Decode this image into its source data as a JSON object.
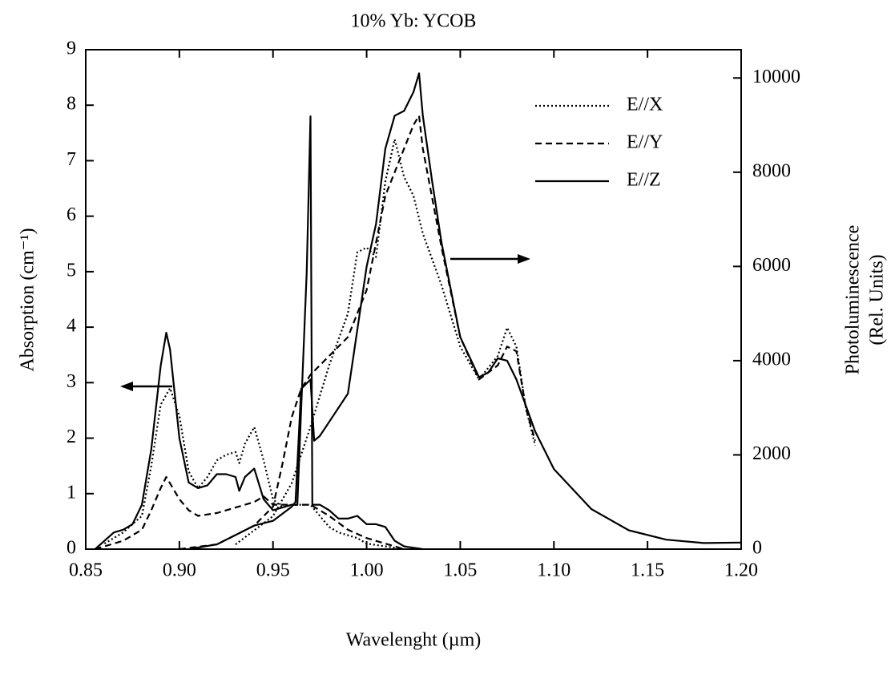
{
  "chart_data": {
    "type": "line",
    "title": "10% Yb: YCOB",
    "xlabel": "Wavelenght (µm)",
    "ylabel": "Absorption (cm⁻¹)",
    "y2label": [
      "Photoluminescence",
      "(Rel. Units)"
    ],
    "xlim": [
      0.85,
      1.2
    ],
    "xticks": [
      {
        "value": 0.85,
        "label": "0.85"
      },
      {
        "value": 0.9,
        "label": "0.90"
      },
      {
        "value": 0.95,
        "label": "0.95"
      },
      {
        "value": 1.0,
        "label": "1.00"
      },
      {
        "value": 1.05,
        "label": "1.05"
      },
      {
        "value": 1.1,
        "label": "1.10"
      },
      {
        "value": 1.15,
        "label": "1.15"
      },
      {
        "value": 1.2,
        "label": "1.20"
      }
    ],
    "ylim": [
      0,
      9
    ],
    "yticks": [
      0,
      1,
      2,
      3,
      4,
      5,
      6,
      7,
      8,
      9
    ],
    "y2lim": [
      0,
      10600
    ],
    "y2ticks": [
      0,
      2000,
      4000,
      6000,
      8000,
      10000
    ],
    "legend_position": "upper right",
    "styles": [
      {
        "name": "E//X",
        "dash": "2,3",
        "color": "#000000"
      },
      {
        "name": "E//Y",
        "dash": "8,5",
        "color": "#000000"
      },
      {
        "name": "E//Z",
        "dash": "none",
        "color": "#000000"
      }
    ],
    "series": [
      {
        "style": 0,
        "axis": "y",
        "x": [
          0.86,
          0.87,
          0.88,
          0.885,
          0.89,
          0.895,
          0.9,
          0.905,
          0.91,
          0.915,
          0.92,
          0.925,
          0.93,
          0.932,
          0.935,
          0.94,
          0.945,
          0.95,
          0.955,
          0.96,
          0.965,
          0.97,
          0.975,
          0.98,
          0.985,
          0.99,
          0.995,
          1.0,
          1.01,
          1.02
        ],
        "values": [
          0.1,
          0.3,
          0.6,
          1.5,
          2.6,
          2.9,
          2.4,
          1.4,
          1.1,
          1.3,
          1.6,
          1.7,
          1.75,
          1.55,
          1.9,
          2.2,
          1.6,
          0.9,
          0.75,
          0.8,
          0.8,
          0.8,
          0.6,
          0.4,
          0.3,
          0.25,
          0.2,
          0.1,
          0.05,
          0
        ]
      },
      {
        "style": 1,
        "axis": "y",
        "x": [
          0.855,
          0.86,
          0.87,
          0.88,
          0.885,
          0.89,
          0.893,
          0.9,
          0.905,
          0.91,
          0.92,
          0.93,
          0.94,
          0.945,
          0.95,
          0.96,
          0.97,
          0.98,
          0.99,
          1.0,
          1.01,
          1.02
        ],
        "values": [
          0,
          0.05,
          0.15,
          0.35,
          0.7,
          1.1,
          1.3,
          0.9,
          0.7,
          0.6,
          0.65,
          0.75,
          0.85,
          0.95,
          0.8,
          0.8,
          0.8,
          0.6,
          0.35,
          0.2,
          0.1,
          0
        ]
      },
      {
        "style": 2,
        "axis": "y",
        "x": [
          0.855,
          0.86,
          0.865,
          0.87,
          0.875,
          0.88,
          0.885,
          0.89,
          0.893,
          0.895,
          0.9,
          0.905,
          0.91,
          0.915,
          0.92,
          0.925,
          0.93,
          0.932,
          0.935,
          0.94,
          0.945,
          0.95,
          0.955,
          0.96,
          0.963,
          0.965,
          0.968,
          0.97,
          0.971,
          0.975,
          0.98,
          0.985,
          0.99,
          0.995,
          1.0,
          1.005,
          1.01,
          1.015,
          1.02,
          1.03
        ],
        "values": [
          0,
          0.15,
          0.3,
          0.35,
          0.45,
          0.8,
          1.8,
          3.3,
          3.9,
          3.6,
          2.0,
          1.2,
          1.1,
          1.15,
          1.35,
          1.35,
          1.3,
          1.05,
          1.3,
          1.45,
          0.9,
          0.7,
          0.75,
          0.8,
          0.8,
          2.5,
          5.0,
          7.8,
          0.8,
          0.8,
          0.7,
          0.55,
          0.55,
          0.6,
          0.45,
          0.45,
          0.4,
          0.15,
          0.05,
          0
        ]
      },
      {
        "style": 0,
        "axis": "y2",
        "x": [
          0.93,
          0.94,
          0.95,
          0.96,
          0.97,
          0.98,
          0.99,
          0.995,
          1.0,
          1.005,
          1.01,
          1.015,
          1.02,
          1.025,
          1.03,
          1.04,
          1.05,
          1.06,
          1.07,
          1.075,
          1.08,
          1.085,
          1.09
        ],
        "values": [
          100,
          400,
          700,
          1400,
          2600,
          3900,
          5000,
          6300,
          6400,
          6200,
          7800,
          8700,
          7900,
          7500,
          6700,
          5600,
          4300,
          3600,
          4100,
          4700,
          4300,
          3000,
          2200
        ]
      },
      {
        "style": 1,
        "axis": "y2",
        "x": [
          0.9,
          0.92,
          0.93,
          0.94,
          0.95,
          0.955,
          0.96,
          0.965,
          0.97,
          0.98,
          0.99,
          1.0,
          1.01,
          1.02,
          1.025,
          1.028,
          1.03,
          1.04,
          1.05,
          1.06,
          1.07,
          1.075,
          1.08,
          1.085,
          1.09
        ],
        "values": [
          0,
          100,
          300,
          500,
          900,
          1800,
          2800,
          3400,
          3700,
          4100,
          4500,
          5500,
          7500,
          8500,
          9000,
          9200,
          8500,
          6400,
          4500,
          3600,
          3900,
          4300,
          4200,
          3000,
          2300
        ]
      },
      {
        "style": 2,
        "axis": "y2",
        "x": [
          0.905,
          0.92,
          0.93,
          0.94,
          0.95,
          0.96,
          0.962,
          0.965,
          0.97,
          0.972,
          0.975,
          0.98,
          0.99,
          1.0,
          1.005,
          1.01,
          1.015,
          1.02,
          1.025,
          1.028,
          1.03,
          1.035,
          1.04,
          1.05,
          1.06,
          1.065,
          1.07,
          1.075,
          1.08,
          1.09,
          1.1,
          1.12,
          1.14,
          1.16,
          1.18,
          1.2
        ],
        "values": [
          0,
          100,
          300,
          500,
          600,
          900,
          1000,
          3400,
          3600,
          2300,
          2400,
          2700,
          3300,
          6000,
          6900,
          8500,
          9200,
          9300,
          9700,
          10100,
          9200,
          7800,
          6500,
          4500,
          3650,
          3750,
          4050,
          4000,
          3600,
          2500,
          1700,
          850,
          400,
          200,
          130,
          140
        ]
      }
    ]
  }
}
